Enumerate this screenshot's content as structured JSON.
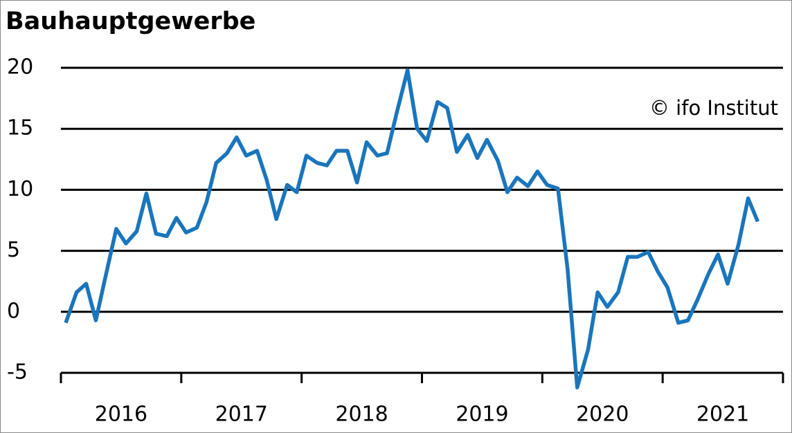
{
  "chart_data": {
    "type": "line",
    "title": "Bauhauptgewerbe",
    "annotation": "© ifo Institut",
    "x": [
      2016.04,
      2016.13,
      2016.21,
      2016.29,
      2016.38,
      2016.46,
      2016.54,
      2016.63,
      2016.71,
      2016.79,
      2016.88,
      2016.96,
      2017.04,
      2017.13,
      2017.21,
      2017.29,
      2017.38,
      2017.46,
      2017.54,
      2017.63,
      2017.71,
      2017.79,
      2017.88,
      2017.96,
      2018.04,
      2018.13,
      2018.21,
      2018.29,
      2018.38,
      2018.46,
      2018.54,
      2018.63,
      2018.71,
      2018.79,
      2018.88,
      2018.96,
      2019.04,
      2019.13,
      2019.21,
      2019.29,
      2019.38,
      2019.46,
      2019.54,
      2019.63,
      2019.71,
      2019.79,
      2019.88,
      2019.96,
      2020.04,
      2020.13,
      2020.21,
      2020.29,
      2020.38,
      2020.46,
      2020.54,
      2020.63,
      2020.71,
      2020.79,
      2020.88,
      2020.96,
      2021.04,
      2021.13,
      2021.21,
      2021.29,
      2021.38,
      2021.46,
      2021.54,
      2021.63,
      2021.71,
      2021.79
    ],
    "series": [
      {
        "color": "#1a75bc",
        "values": [
          -0.9,
          1.6,
          2.3,
          -0.7,
          3.3,
          6.8,
          5.6,
          6.6,
          9.7,
          6.4,
          6.2,
          7.7,
          6.5,
          6.9,
          9.0,
          12.2,
          13.0,
          14.3,
          12.8,
          13.2,
          10.8,
          7.6,
          10.4,
          9.8,
          12.8,
          12.2,
          12.0,
          13.2,
          13.2,
          10.6,
          13.9,
          12.8,
          13.0,
          16.3,
          19.8,
          15.0,
          14.0,
          17.2,
          16.7,
          13.1,
          14.5,
          12.6,
          14.1,
          12.4,
          9.8,
          11.0,
          10.3,
          11.5,
          10.4,
          10.1,
          3.5,
          -6.2,
          -3.1,
          1.6,
          0.4,
          1.6,
          4.5,
          4.5,
          4.9,
          3.3,
          2.0,
          -0.9,
          -0.7,
          1.0,
          3.1,
          4.7,
          2.3,
          5.5,
          9.3,
          7.4
        ]
      }
    ],
    "xlim": [
      2016,
      2022
    ],
    "xticks": [
      2016,
      2017,
      2018,
      2019,
      2020,
      2021
    ],
    "ylim": [
      -5,
      20
    ],
    "yticks": [
      -5,
      0,
      5,
      10,
      15,
      20
    ],
    "grid": true
  }
}
